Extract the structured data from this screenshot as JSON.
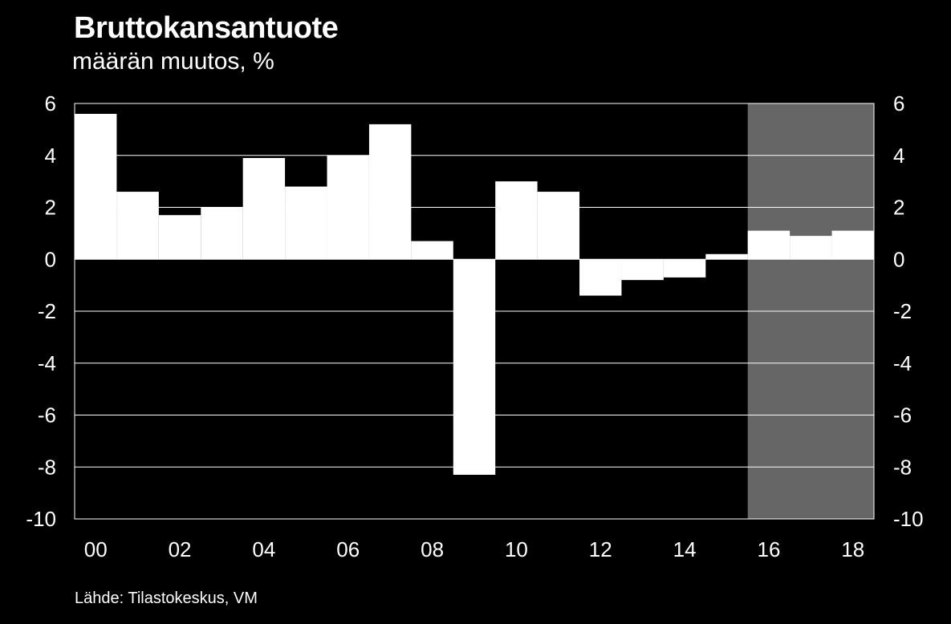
{
  "title": "Bruttokansantuote",
  "subtitle": "määrän muutos, %",
  "source": "Lähde: Tilastokeskus, VM",
  "colors": {
    "background": "#000000",
    "bars": "#ffffff",
    "forecast_shade": "#666666",
    "grid": "#ffffff"
  },
  "chart_data": {
    "type": "bar",
    "title": "Bruttokansantuote",
    "subtitle": "määrän muutos, %",
    "years": [
      "00",
      "01",
      "02",
      "03",
      "04",
      "05",
      "06",
      "07",
      "08",
      "09",
      "10",
      "11",
      "12",
      "13",
      "14",
      "15",
      "16",
      "17",
      "18"
    ],
    "xtick_labels": [
      "00",
      "02",
      "04",
      "06",
      "08",
      "10",
      "12",
      "14",
      "16",
      "18"
    ],
    "values": [
      5.6,
      2.6,
      1.7,
      2.0,
      3.9,
      2.8,
      4.0,
      5.2,
      0.7,
      -8.3,
      3.0,
      2.6,
      -1.4,
      -0.8,
      -0.7,
      0.2,
      1.1,
      0.9,
      1.1
    ],
    "ylim": [
      -10,
      6
    ],
    "yticks": [
      "6",
      "4",
      "2",
      "0",
      "-2",
      "-4",
      "-6",
      "-8",
      "-10"
    ],
    "forecast_from_year": "16",
    "grid": true,
    "secondary_y_axis": true
  }
}
